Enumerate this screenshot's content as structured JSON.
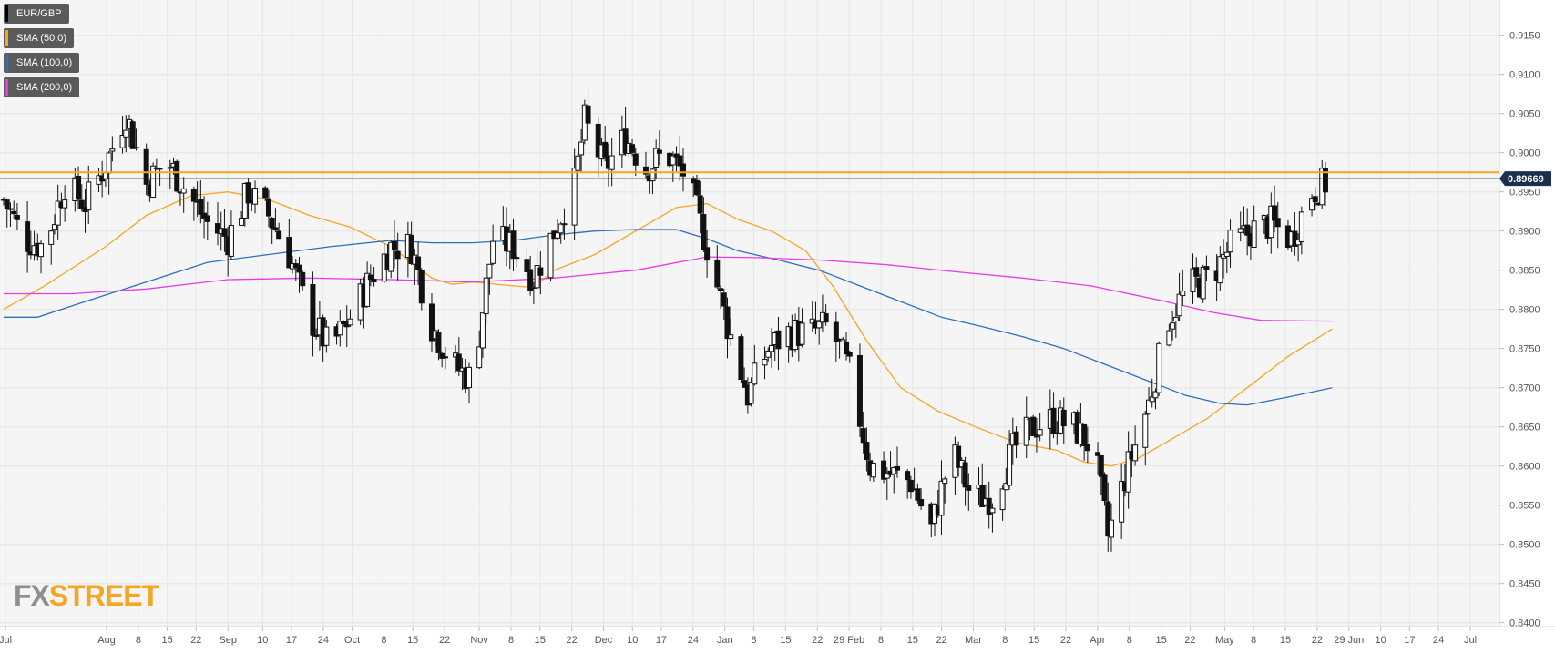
{
  "legend": [
    {
      "label": "EUR/GBP",
      "color": "#000000"
    },
    {
      "label": "SMA (50,0)",
      "color": "#f5a623"
    },
    {
      "label": "SMA (100,0)",
      "color": "#2f6fbf"
    },
    {
      "label": "SMA (200,0)",
      "color": "#e83be8"
    }
  ],
  "logo": {
    "fx": "FX",
    "street": "STREET"
  },
  "price_tag": "0.89669",
  "chart_data": {
    "type": "candlestick",
    "title": "",
    "xlabel": "",
    "ylabel": "",
    "ylim": [
      0.8395,
      0.9195
    ],
    "y_ticks": [
      "0.9150",
      "0.9100",
      "0.9050",
      "0.9000",
      "0.8950",
      "0.8900",
      "0.8850",
      "0.8800",
      "0.8750",
      "0.8700",
      "0.8650",
      "0.8600",
      "0.8550",
      "0.8500",
      "0.8450",
      "0.8400"
    ],
    "x_ticks": [
      "Jul",
      "Aug",
      "8",
      "15",
      "22",
      "Sep",
      "10",
      "17",
      "24",
      "Oct",
      "8",
      "15",
      "22",
      "Nov",
      "8",
      "15",
      "22",
      "Dec",
      "10",
      "17",
      "24",
      "Jan",
      "8",
      "15",
      "22",
      "29 Feb",
      "8",
      "15",
      "22",
      "Mar",
      "8",
      "15",
      "22",
      "Apr",
      "8",
      "15",
      "22",
      "May",
      "8",
      "15",
      "22",
      "29 Jun",
      "10",
      "17",
      "24",
      "Jul"
    ],
    "resistance_level": 0.8975,
    "last_price": 0.89669,
    "grid": true,
    "legend_position": "top-left",
    "anchors": [
      {
        "d": 0,
        "p": 0.894
      },
      {
        "d": 6,
        "p": 0.889
      },
      {
        "d": 12,
        "p": 0.888
      },
      {
        "d": 18,
        "p": 0.896
      },
      {
        "d": 24,
        "p": 0.8935
      },
      {
        "d": 30,
        "p": 0.8985
      },
      {
        "d": 36,
        "p": 0.905
      },
      {
        "d": 42,
        "p": 0.896
      },
      {
        "d": 48,
        "p": 0.899
      },
      {
        "d": 54,
        "p": 0.895
      },
      {
        "d": 60,
        "p": 0.891
      },
      {
        "d": 66,
        "p": 0.889
      },
      {
        "d": 72,
        "p": 0.895
      },
      {
        "d": 78,
        "p": 0.892
      },
      {
        "d": 84,
        "p": 0.887
      },
      {
        "d": 90,
        "p": 0.879
      },
      {
        "d": 96,
        "p": 0.875
      },
      {
        "d": 102,
        "p": 0.879
      },
      {
        "d": 108,
        "p": 0.884
      },
      {
        "d": 114,
        "p": 0.888
      },
      {
        "d": 120,
        "p": 0.888
      },
      {
        "d": 126,
        "p": 0.878
      },
      {
        "d": 132,
        "p": 0.873
      },
      {
        "d": 138,
        "p": 0.871
      },
      {
        "d": 144,
        "p": 0.889
      },
      {
        "d": 150,
        "p": 0.888
      },
      {
        "d": 156,
        "p": 0.884
      },
      {
        "d": 162,
        "p": 0.89
      },
      {
        "d": 168,
        "p": 0.896
      },
      {
        "d": 171,
        "p": 0.904
      },
      {
        "d": 177,
        "p": 0.898
      },
      {
        "d": 183,
        "p": 0.902
      },
      {
        "d": 189,
        "p": 0.898
      },
      {
        "d": 195,
        "p": 0.9
      },
      {
        "d": 201,
        "p": 0.897
      },
      {
        "d": 207,
        "p": 0.888
      },
      {
        "d": 213,
        "p": 0.878
      },
      {
        "d": 219,
        "p": 0.869
      },
      {
        "d": 225,
        "p": 0.875
      },
      {
        "d": 231,
        "p": 0.877
      },
      {
        "d": 237,
        "p": 0.877
      },
      {
        "d": 243,
        "p": 0.878
      },
      {
        "d": 249,
        "p": 0.872
      },
      {
        "d": 255,
        "p": 0.86
      },
      {
        "d": 261,
        "p": 0.859
      },
      {
        "d": 267,
        "p": 0.858
      },
      {
        "d": 273,
        "p": 0.852
      },
      {
        "d": 279,
        "p": 0.862
      },
      {
        "d": 285,
        "p": 0.856
      },
      {
        "d": 291,
        "p": 0.856
      },
      {
        "d": 297,
        "p": 0.862
      },
      {
        "d": 303,
        "p": 0.865
      },
      {
        "d": 309,
        "p": 0.866
      },
      {
        "d": 315,
        "p": 0.865
      },
      {
        "d": 321,
        "p": 0.862
      },
      {
        "d": 325,
        "p": 0.851
      },
      {
        "d": 331,
        "p": 0.86
      },
      {
        "d": 337,
        "p": 0.868
      },
      {
        "d": 343,
        "p": 0.879
      },
      {
        "d": 349,
        "p": 0.883
      },
      {
        "d": 355,
        "p": 0.884
      },
      {
        "d": 361,
        "p": 0.888
      },
      {
        "d": 367,
        "p": 0.89
      },
      {
        "d": 373,
        "p": 0.891
      },
      {
        "d": 379,
        "p": 0.889
      },
      {
        "d": 385,
        "p": 0.895
      },
      {
        "d": 391,
        "p": 0.8967
      }
    ],
    "sma": [
      {
        "name": "SMA (50,0)",
        "color": "#f5a623",
        "points": [
          [
            0,
            0.88
          ],
          [
            12,
            0.883
          ],
          [
            30,
            0.888
          ],
          [
            42,
            0.892
          ],
          [
            55,
            0.8945
          ],
          [
            66,
            0.895
          ],
          [
            78,
            0.894
          ],
          [
            90,
            0.892
          ],
          [
            102,
            0.8905
          ],
          [
            114,
            0.888
          ],
          [
            126,
            0.884
          ],
          [
            132,
            0.8832
          ],
          [
            138,
            0.8835
          ],
          [
            150,
            0.883
          ],
          [
            156,
            0.8828
          ],
          [
            162,
            0.885
          ],
          [
            174,
            0.887
          ],
          [
            186,
            0.89
          ],
          [
            198,
            0.893
          ],
          [
            207,
            0.8935
          ],
          [
            216,
            0.8915
          ],
          [
            226,
            0.89
          ],
          [
            236,
            0.8875
          ],
          [
            244,
            0.883
          ],
          [
            254,
            0.876
          ],
          [
            264,
            0.87
          ],
          [
            275,
            0.867
          ],
          [
            286,
            0.865
          ],
          [
            298,
            0.863
          ],
          [
            310,
            0.862
          ],
          [
            318,
            0.8605
          ],
          [
            326,
            0.86
          ],
          [
            334,
            0.861
          ],
          [
            344,
            0.8635
          ],
          [
            354,
            0.866
          ],
          [
            366,
            0.87
          ],
          [
            378,
            0.874
          ],
          [
            391,
            0.8775
          ]
        ]
      },
      {
        "name": "SMA (100,0)",
        "color": "#2f6fbf",
        "points": [
          [
            0,
            0.879
          ],
          [
            10,
            0.879
          ],
          [
            24,
            0.881
          ],
          [
            42,
            0.8835
          ],
          [
            60,
            0.886
          ],
          [
            78,
            0.887
          ],
          [
            96,
            0.888
          ],
          [
            114,
            0.8888
          ],
          [
            126,
            0.8885
          ],
          [
            138,
            0.8885
          ],
          [
            150,
            0.8888
          ],
          [
            162,
            0.8895
          ],
          [
            174,
            0.89
          ],
          [
            186,
            0.8902
          ],
          [
            198,
            0.8902
          ],
          [
            207,
            0.889
          ],
          [
            216,
            0.8875
          ],
          [
            228,
            0.8863
          ],
          [
            240,
            0.885
          ],
          [
            252,
            0.883
          ],
          [
            264,
            0.881
          ],
          [
            276,
            0.879
          ],
          [
            288,
            0.8778
          ],
          [
            300,
            0.8765
          ],
          [
            312,
            0.875
          ],
          [
            324,
            0.873
          ],
          [
            336,
            0.871
          ],
          [
            348,
            0.869
          ],
          [
            358,
            0.868
          ],
          [
            366,
            0.8678
          ],
          [
            378,
            0.8688
          ],
          [
            391,
            0.87
          ]
        ]
      },
      {
        "name": "SMA (200,0)",
        "color": "#e83be8",
        "points": [
          [
            0,
            0.882
          ],
          [
            20,
            0.882
          ],
          [
            42,
            0.8826
          ],
          [
            66,
            0.8838
          ],
          [
            90,
            0.884
          ],
          [
            114,
            0.8838
          ],
          [
            138,
            0.8835
          ],
          [
            162,
            0.884
          ],
          [
            186,
            0.885
          ],
          [
            207,
            0.8867
          ],
          [
            222,
            0.8866
          ],
          [
            240,
            0.8863
          ],
          [
            260,
            0.8857
          ],
          [
            280,
            0.8848
          ],
          [
            300,
            0.884
          ],
          [
            320,
            0.883
          ],
          [
            340,
            0.8812
          ],
          [
            356,
            0.8796
          ],
          [
            370,
            0.8786
          ],
          [
            391,
            0.8785
          ]
        ]
      }
    ]
  }
}
